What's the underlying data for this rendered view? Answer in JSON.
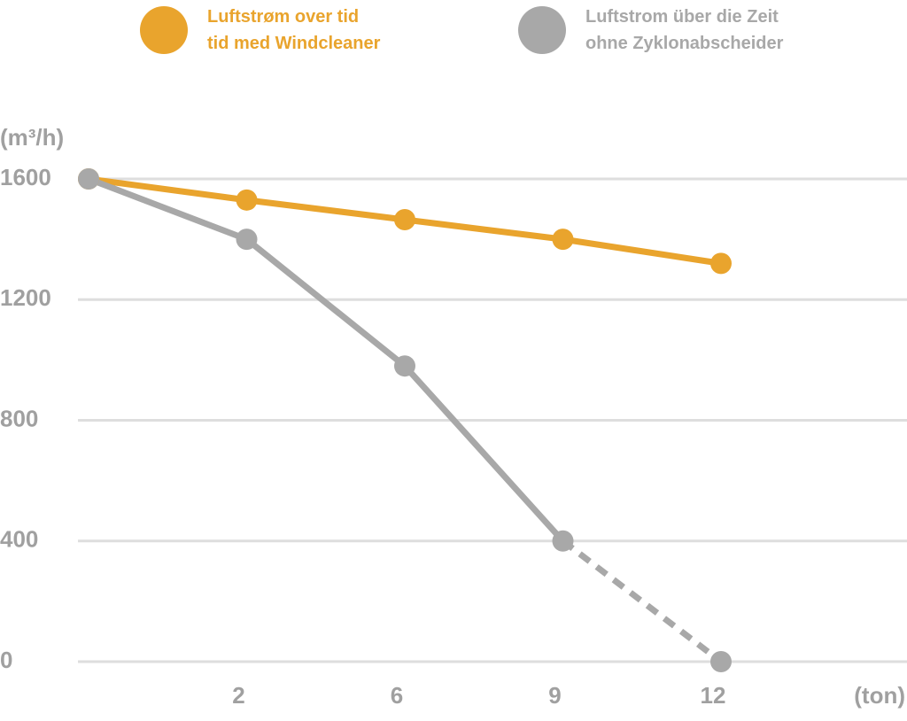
{
  "chart_data": {
    "type": "line",
    "y_label": "(m³/h)",
    "x_label": "(ton)",
    "categories": [
      null,
      "2",
      "6",
      "9",
      "12"
    ],
    "series": [
      {
        "name": "Luftstrøm over tid\ntid med Windcleaner",
        "color": "#e9a42d",
        "values": [
          1600,
          1530,
          1465,
          1400,
          1320
        ]
      },
      {
        "name": "Luftstrom über die Zeit\nohne Zyklonabscheider",
        "color": "#a8a8a8",
        "values": [
          1600,
          1400,
          980,
          400,
          0
        ],
        "dash_from": 3
      }
    ],
    "ylim": [
      0,
      1600
    ],
    "yticks": [
      0,
      400,
      800,
      1200,
      1600
    ],
    "grid": true
  }
}
